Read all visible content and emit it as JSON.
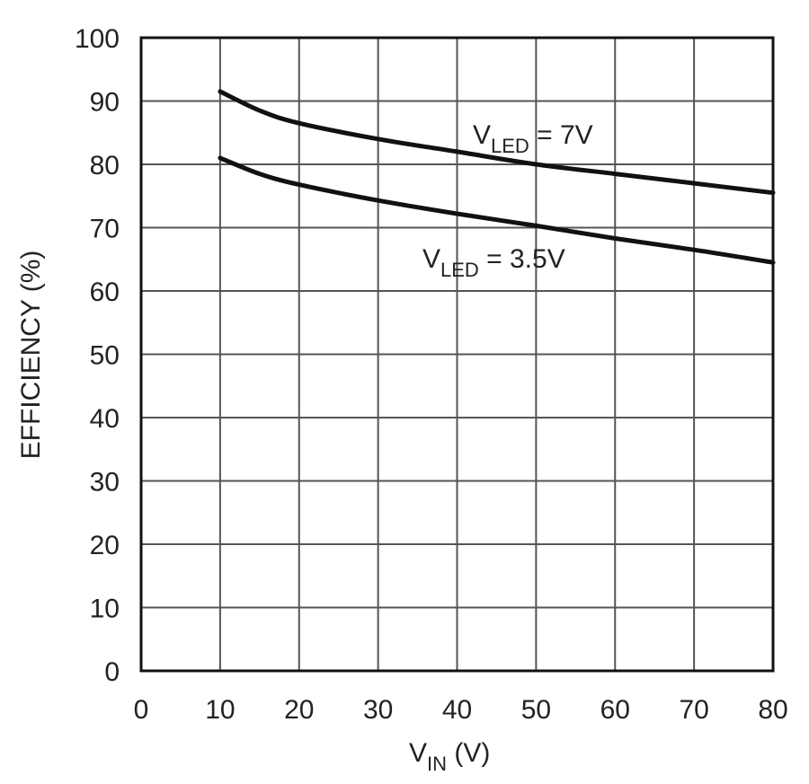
{
  "chart_data": {
    "type": "line",
    "title": "",
    "xlabel": {
      "main": "V",
      "sub": "IN",
      "unit": " (V)"
    },
    "ylabel": "EFFICIENCY (%)",
    "xlim": [
      0,
      80
    ],
    "ylim": [
      0,
      100
    ],
    "x_ticks": [
      "0",
      "10",
      "20",
      "30",
      "40",
      "50",
      "60",
      "70",
      "80"
    ],
    "y_ticks": [
      "0",
      "10",
      "20",
      "30",
      "40",
      "50",
      "60",
      "70",
      "80",
      "90",
      "100"
    ],
    "grid": true,
    "legend": "none",
    "series": [
      {
        "name": "VLED = 7V",
        "label_main": "V",
        "label_sub": "LED",
        "label_rest": " = 7V",
        "x": [
          10,
          15,
          20,
          30,
          40,
          50,
          60,
          70,
          80
        ],
        "y": [
          91.5,
          88.5,
          86.5,
          84,
          82,
          80,
          78.5,
          77,
          75.5
        ]
      },
      {
        "name": "VLED = 3.5V",
        "label_main": "V",
        "label_sub": "LED",
        "label_rest": " = 3.5V",
        "x": [
          10,
          15,
          20,
          30,
          40,
          50,
          60,
          70,
          80
        ],
        "y": [
          81,
          78.5,
          76.8,
          74.3,
          72.2,
          70.3,
          68.3,
          66.5,
          64.5
        ]
      }
    ]
  }
}
